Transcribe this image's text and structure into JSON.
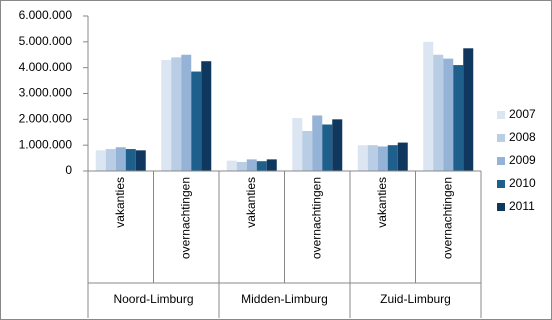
{
  "chart_data": {
    "type": "bar",
    "categories": [
      "vakanties",
      "overnachtingen",
      "vakanties",
      "overnachtingen",
      "vakanties",
      "overnachtingen"
    ],
    "groups": [
      "Noord-Limburg",
      "Midden-Limburg",
      "Zuid-Limburg"
    ],
    "series": [
      {
        "name": "2007",
        "color": "#dce6f2",
        "values": [
          800000,
          4300000,
          400000,
          2050000,
          1000000,
          5000000
        ]
      },
      {
        "name": "2008",
        "color": "#b9cde5",
        "values": [
          850000,
          4400000,
          350000,
          1550000,
          1000000,
          4500000
        ]
      },
      {
        "name": "2009",
        "color": "#95b3d7",
        "values": [
          920000,
          4500000,
          450000,
          2150000,
          950000,
          4350000
        ]
      },
      {
        "name": "2010",
        "color": "#1f5f8b",
        "values": [
          850000,
          3850000,
          380000,
          1800000,
          1000000,
          4100000
        ]
      },
      {
        "name": "2011",
        "color": "#10375e",
        "values": [
          800000,
          4250000,
          450000,
          2000000,
          1100000,
          4750000
        ]
      }
    ],
    "ylim": [
      0,
      6000000
    ],
    "yticks": [
      0,
      {
        "value": 1000000,
        "label": "1.000.000"
      },
      {
        "value": 2000000,
        "label": "2.000.000"
      },
      {
        "value": 3000000,
        "label": "3.000.000"
      },
      {
        "value": 4000000,
        "label": "4.000.000"
      },
      {
        "value": 5000000,
        "label": "5.000.000"
      },
      {
        "value": 6000000,
        "label": "6.000.000"
      }
    ],
    "grid": false,
    "legend": "right"
  }
}
